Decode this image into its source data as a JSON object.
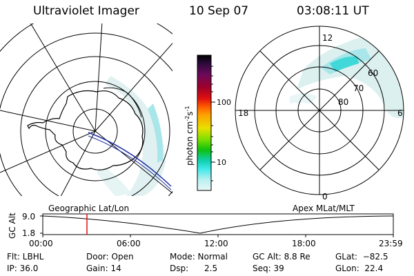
{
  "header": {
    "instrument": "Ultraviolet Imager",
    "date": "10 Sep 07",
    "time": "03:08:11 UT"
  },
  "colorbar": {
    "unit_label": "photon cm",
    "unit_exp1": "-2",
    "unit_mid": "s",
    "unit_exp2": "-1",
    "ticks": [
      "100",
      "10"
    ],
    "colors": [
      "#000000",
      "#2a0a3a",
      "#6a0a5a",
      "#a0002a",
      "#e01010",
      "#ff5a00",
      "#ffa000",
      "#e8e000",
      "#80e000",
      "#10c010",
      "#10d0b0",
      "#40e8e8",
      "#b8f0f0",
      "#e8f8f8"
    ]
  },
  "geo_map": {
    "label": "Geographic Lat/Lon"
  },
  "apex_map": {
    "label": "Apex MLat/MLT",
    "mlt_labels": {
      "top": "12",
      "left": "18",
      "right": "6",
      "bottom": "0"
    },
    "lat_labels": [
      "60",
      "70",
      "80"
    ]
  },
  "timeline": {
    "ylabel": "GC Alt",
    "ymax": "9.0",
    "ymin": "1.8",
    "xticks": [
      "00:00",
      "06:00",
      "12:00",
      "18:00",
      "23:59"
    ]
  },
  "footer": {
    "flt": "Flt: LBHL",
    "ip": "IP: 36.0",
    "door": "Door: Open",
    "gain": "Gain: 14",
    "mode": "Mode: Normal",
    "dsp": "Dsp:      2.5",
    "gcalt": "GC Alt: 8.8 Re",
    "seq": "Seq: 39",
    "glat": "GLat:  −82.5",
    "glon": "GLon:  22.4"
  },
  "colors": {
    "aurora_faint": "#d8eeee",
    "aurora_mid": "#a8e6ea",
    "aurora_bright": "#40d8d8",
    "orbit_track": "#2030a0",
    "time_marker": "#e01010"
  }
}
